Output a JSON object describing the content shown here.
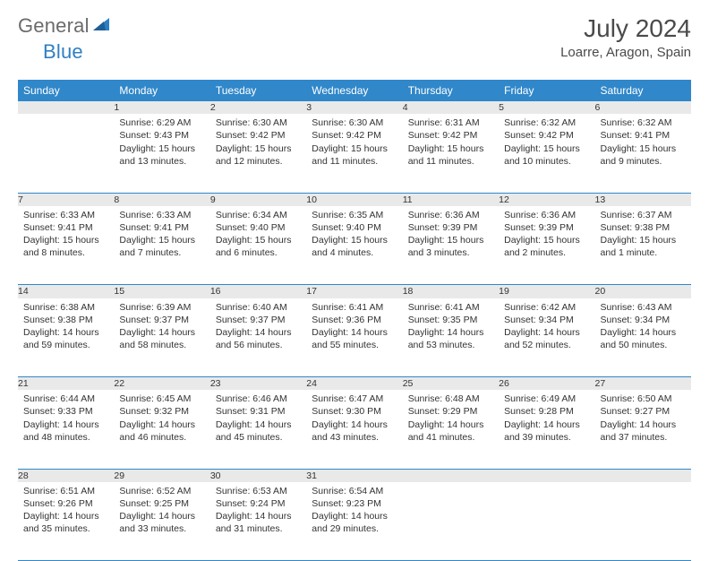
{
  "logo": {
    "text1": "General",
    "text2": "Blue"
  },
  "colors": {
    "headerBg": "#3087c9",
    "headerText": "#ffffff",
    "dayNumBg": "#e9e9e9",
    "dayNumText": "#6b6b6b",
    "rowBorder": "#3087c9",
    "bodyText": "#333333",
    "logoGray": "#6b6b6b",
    "logoBlue": "#2f7fc3"
  },
  "title": "July 2024",
  "location": "Loarre, Aragon, Spain",
  "weekdays": [
    "Sunday",
    "Monday",
    "Tuesday",
    "Wednesday",
    "Thursday",
    "Friday",
    "Saturday"
  ],
  "weeks": [
    [
      null,
      {
        "n": "1",
        "sr": "Sunrise: 6:29 AM",
        "ss": "Sunset: 9:43 PM",
        "dl": "Daylight: 15 hours and 13 minutes."
      },
      {
        "n": "2",
        "sr": "Sunrise: 6:30 AM",
        "ss": "Sunset: 9:42 PM",
        "dl": "Daylight: 15 hours and 12 minutes."
      },
      {
        "n": "3",
        "sr": "Sunrise: 6:30 AM",
        "ss": "Sunset: 9:42 PM",
        "dl": "Daylight: 15 hours and 11 minutes."
      },
      {
        "n": "4",
        "sr": "Sunrise: 6:31 AM",
        "ss": "Sunset: 9:42 PM",
        "dl": "Daylight: 15 hours and 11 minutes."
      },
      {
        "n": "5",
        "sr": "Sunrise: 6:32 AM",
        "ss": "Sunset: 9:42 PM",
        "dl": "Daylight: 15 hours and 10 minutes."
      },
      {
        "n": "6",
        "sr": "Sunrise: 6:32 AM",
        "ss": "Sunset: 9:41 PM",
        "dl": "Daylight: 15 hours and 9 minutes."
      }
    ],
    [
      {
        "n": "7",
        "sr": "Sunrise: 6:33 AM",
        "ss": "Sunset: 9:41 PM",
        "dl": "Daylight: 15 hours and 8 minutes."
      },
      {
        "n": "8",
        "sr": "Sunrise: 6:33 AM",
        "ss": "Sunset: 9:41 PM",
        "dl": "Daylight: 15 hours and 7 minutes."
      },
      {
        "n": "9",
        "sr": "Sunrise: 6:34 AM",
        "ss": "Sunset: 9:40 PM",
        "dl": "Daylight: 15 hours and 6 minutes."
      },
      {
        "n": "10",
        "sr": "Sunrise: 6:35 AM",
        "ss": "Sunset: 9:40 PM",
        "dl": "Daylight: 15 hours and 4 minutes."
      },
      {
        "n": "11",
        "sr": "Sunrise: 6:36 AM",
        "ss": "Sunset: 9:39 PM",
        "dl": "Daylight: 15 hours and 3 minutes."
      },
      {
        "n": "12",
        "sr": "Sunrise: 6:36 AM",
        "ss": "Sunset: 9:39 PM",
        "dl": "Daylight: 15 hours and 2 minutes."
      },
      {
        "n": "13",
        "sr": "Sunrise: 6:37 AM",
        "ss": "Sunset: 9:38 PM",
        "dl": "Daylight: 15 hours and 1 minute."
      }
    ],
    [
      {
        "n": "14",
        "sr": "Sunrise: 6:38 AM",
        "ss": "Sunset: 9:38 PM",
        "dl": "Daylight: 14 hours and 59 minutes."
      },
      {
        "n": "15",
        "sr": "Sunrise: 6:39 AM",
        "ss": "Sunset: 9:37 PM",
        "dl": "Daylight: 14 hours and 58 minutes."
      },
      {
        "n": "16",
        "sr": "Sunrise: 6:40 AM",
        "ss": "Sunset: 9:37 PM",
        "dl": "Daylight: 14 hours and 56 minutes."
      },
      {
        "n": "17",
        "sr": "Sunrise: 6:41 AM",
        "ss": "Sunset: 9:36 PM",
        "dl": "Daylight: 14 hours and 55 minutes."
      },
      {
        "n": "18",
        "sr": "Sunrise: 6:41 AM",
        "ss": "Sunset: 9:35 PM",
        "dl": "Daylight: 14 hours and 53 minutes."
      },
      {
        "n": "19",
        "sr": "Sunrise: 6:42 AM",
        "ss": "Sunset: 9:34 PM",
        "dl": "Daylight: 14 hours and 52 minutes."
      },
      {
        "n": "20",
        "sr": "Sunrise: 6:43 AM",
        "ss": "Sunset: 9:34 PM",
        "dl": "Daylight: 14 hours and 50 minutes."
      }
    ],
    [
      {
        "n": "21",
        "sr": "Sunrise: 6:44 AM",
        "ss": "Sunset: 9:33 PM",
        "dl": "Daylight: 14 hours and 48 minutes."
      },
      {
        "n": "22",
        "sr": "Sunrise: 6:45 AM",
        "ss": "Sunset: 9:32 PM",
        "dl": "Daylight: 14 hours and 46 minutes."
      },
      {
        "n": "23",
        "sr": "Sunrise: 6:46 AM",
        "ss": "Sunset: 9:31 PM",
        "dl": "Daylight: 14 hours and 45 minutes."
      },
      {
        "n": "24",
        "sr": "Sunrise: 6:47 AM",
        "ss": "Sunset: 9:30 PM",
        "dl": "Daylight: 14 hours and 43 minutes."
      },
      {
        "n": "25",
        "sr": "Sunrise: 6:48 AM",
        "ss": "Sunset: 9:29 PM",
        "dl": "Daylight: 14 hours and 41 minutes."
      },
      {
        "n": "26",
        "sr": "Sunrise: 6:49 AM",
        "ss": "Sunset: 9:28 PM",
        "dl": "Daylight: 14 hours and 39 minutes."
      },
      {
        "n": "27",
        "sr": "Sunrise: 6:50 AM",
        "ss": "Sunset: 9:27 PM",
        "dl": "Daylight: 14 hours and 37 minutes."
      }
    ],
    [
      {
        "n": "28",
        "sr": "Sunrise: 6:51 AM",
        "ss": "Sunset: 9:26 PM",
        "dl": "Daylight: 14 hours and 35 minutes."
      },
      {
        "n": "29",
        "sr": "Sunrise: 6:52 AM",
        "ss": "Sunset: 9:25 PM",
        "dl": "Daylight: 14 hours and 33 minutes."
      },
      {
        "n": "30",
        "sr": "Sunrise: 6:53 AM",
        "ss": "Sunset: 9:24 PM",
        "dl": "Daylight: 14 hours and 31 minutes."
      },
      {
        "n": "31",
        "sr": "Sunrise: 6:54 AM",
        "ss": "Sunset: 9:23 PM",
        "dl": "Daylight: 14 hours and 29 minutes."
      },
      null,
      null,
      null
    ]
  ]
}
